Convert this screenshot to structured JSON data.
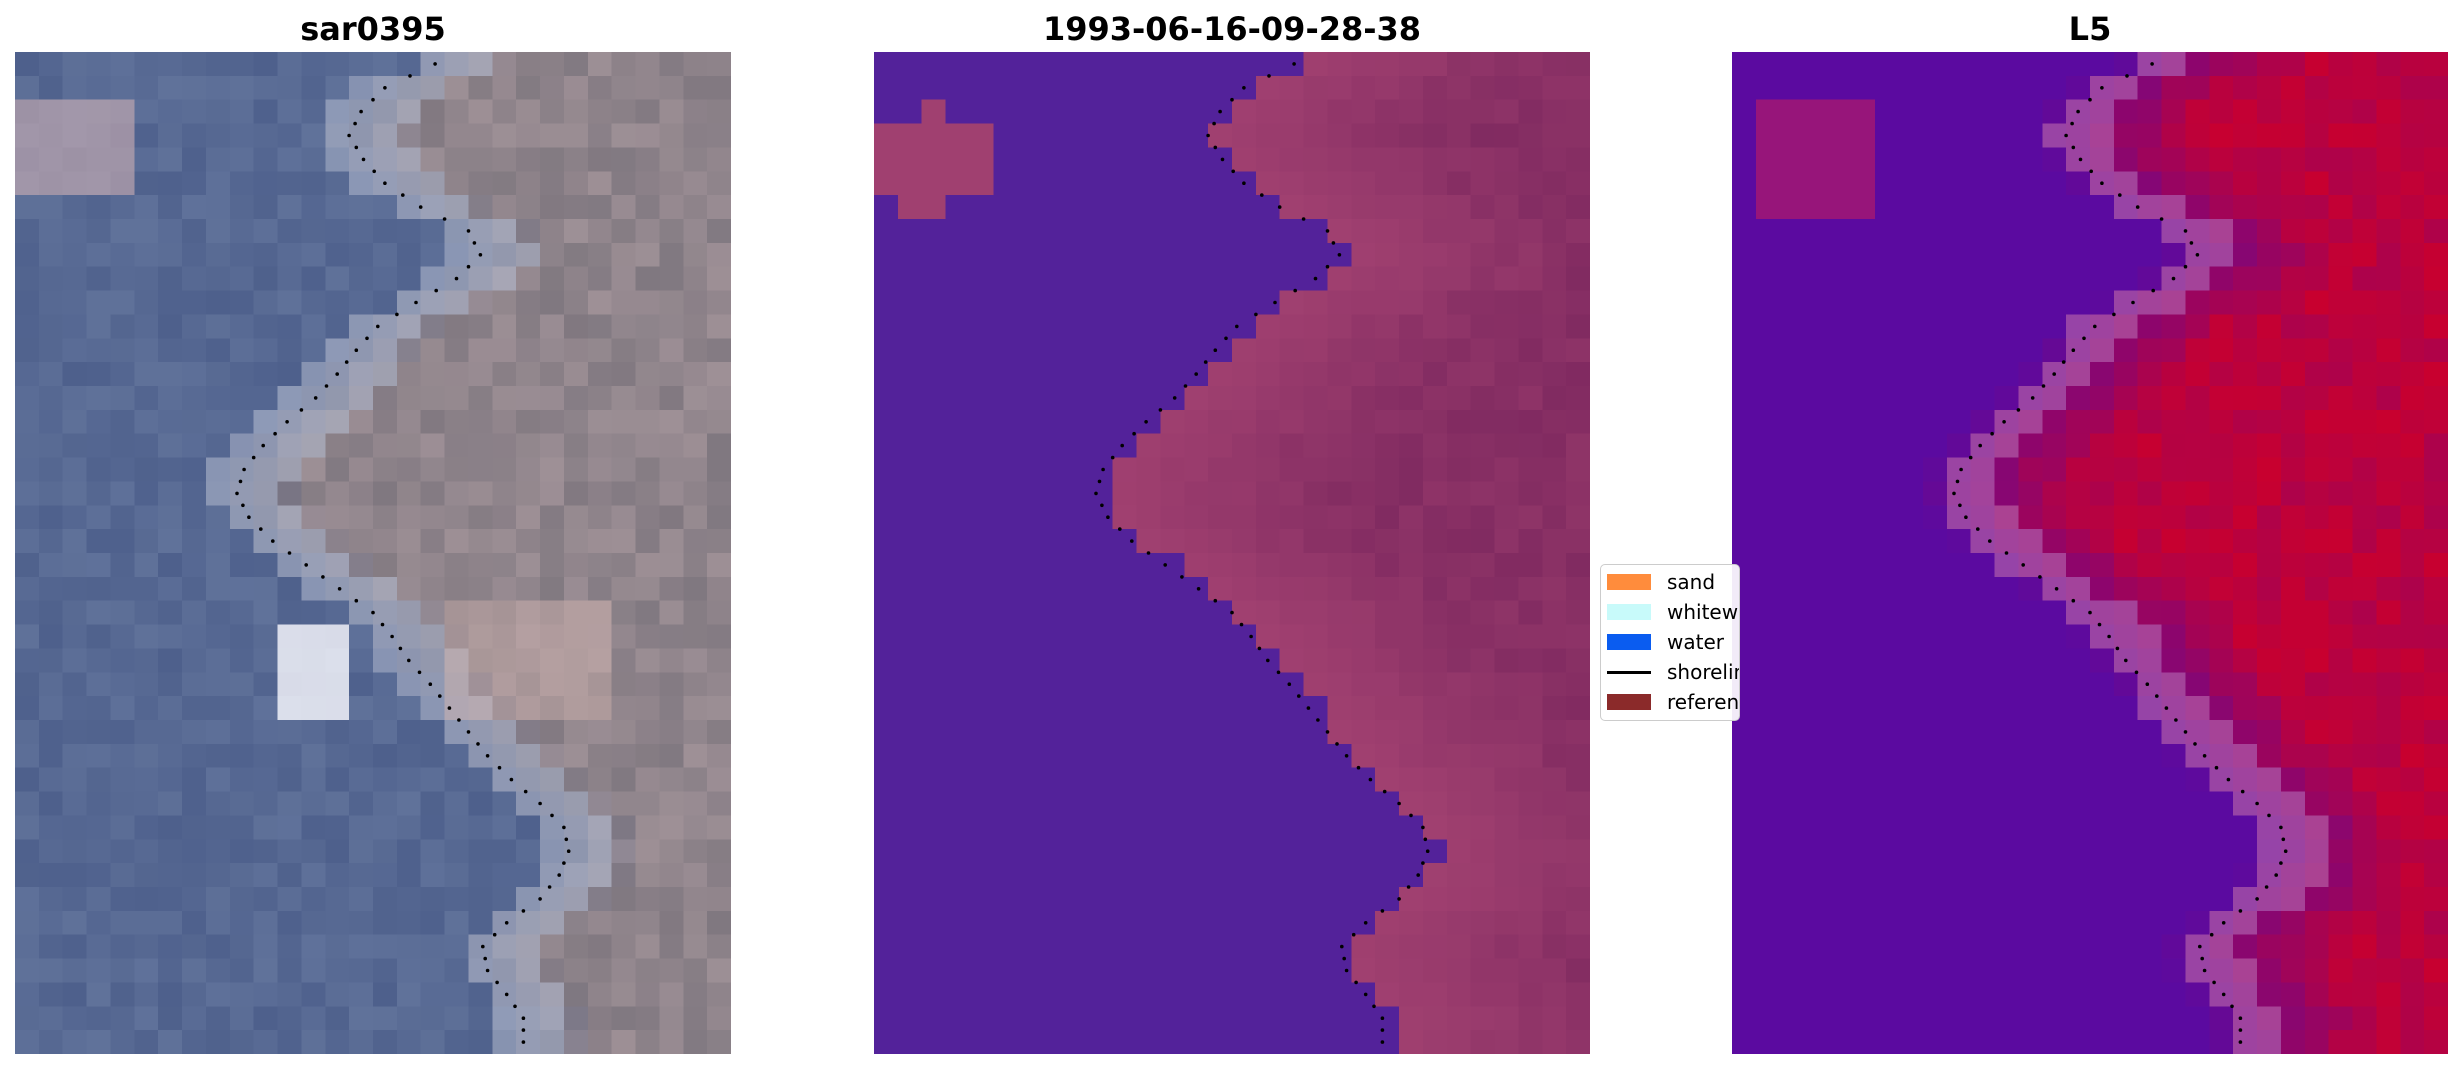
{
  "panels": [
    {
      "title": "sar0395",
      "colormap": "rgb"
    },
    {
      "title": "1993-06-16-09-28-38",
      "colormap": "classified"
    },
    {
      "title": "L5",
      "colormap": "index"
    }
  ],
  "legend": {
    "items": [
      {
        "label": "sand",
        "color": "#ff8c3c",
        "kind": "patch"
      },
      {
        "label": "whitewater",
        "color": "#c8fafa",
        "kind": "patch"
      },
      {
        "label": "water",
        "color": "#0a5cf0",
        "kind": "patch"
      },
      {
        "label": "shoreline",
        "color": "#000000",
        "kind": "line"
      },
      {
        "label": "reference",
        "color": "#8b2a2a",
        "kind": "patch"
      }
    ]
  },
  "colors": {
    "water_class": "#53229a",
    "land_class": "#a04070",
    "index_low": "#5b0aa0",
    "index_high": "#c8002f"
  }
}
